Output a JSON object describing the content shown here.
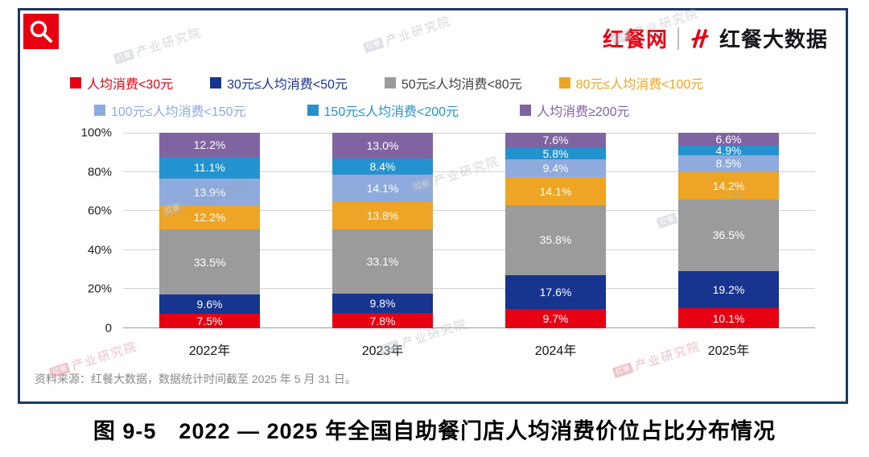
{
  "header": {
    "logo_icon": "magnifier-icon",
    "brand_left": "红餐网",
    "brand_right": "红餐大数据"
  },
  "legend": {
    "items": [
      {
        "label": "人均消费<30元",
        "color": "#e60012"
      },
      {
        "label": "30元≤人均消费<50元",
        "color": "#17348f"
      },
      {
        "label": "50元≤人均消费<80元",
        "color": "#9b9b9b",
        "text_color": "#404040"
      },
      {
        "label": "80元≤人均消费<100元",
        "color": "#eea425"
      },
      {
        "label": "100元≤人均消费<150元",
        "color": "#8faadc"
      },
      {
        "label": "150元≤人均消费<200元",
        "color": "#2492cf"
      },
      {
        "label": "人均消费≥200元",
        "color": "#8064a2"
      }
    ]
  },
  "chart_data": {
    "type": "bar",
    "stacked": true,
    "categories": [
      "2022年",
      "2023年",
      "2024年",
      "2025年"
    ],
    "series": [
      {
        "name": "人均消费<30元",
        "color": "#e60012",
        "values": [
          7.5,
          7.8,
          9.7,
          10.1
        ]
      },
      {
        "name": "30元≤人均消费<50元",
        "color": "#17348f",
        "values": [
          9.6,
          9.8,
          17.6,
          19.2
        ]
      },
      {
        "name": "50元≤人均消费<80元",
        "color": "#9b9b9b",
        "values": [
          33.5,
          33.1,
          35.8,
          36.5
        ]
      },
      {
        "name": "80元≤人均消费<100元",
        "color": "#eea425",
        "values": [
          12.2,
          13.8,
          14.1,
          14.2
        ]
      },
      {
        "name": "100元≤人均消费<150元",
        "color": "#8faadc",
        "values": [
          13.9,
          14.1,
          9.4,
          8.5
        ]
      },
      {
        "name": "150元≤人均消费<200元",
        "color": "#2492cf",
        "values": [
          11.1,
          8.4,
          5.8,
          4.9
        ]
      },
      {
        "name": "人均消费≥200元",
        "color": "#8064a2",
        "values": [
          12.2,
          13.0,
          7.6,
          6.6
        ]
      }
    ],
    "y_ticks": [
      {
        "value": 0,
        "label": "0"
      },
      {
        "value": 20,
        "label": "20%"
      },
      {
        "value": 40,
        "label": "40%"
      },
      {
        "value": 60,
        "label": "60%"
      },
      {
        "value": 80,
        "label": "80%"
      },
      {
        "value": 100,
        "label": "100%"
      }
    ],
    "ylim": [
      0,
      100
    ],
    "grid": true,
    "legend_position": "top",
    "title": "2022 — 2025 年全国自助餐门店人均消费价位占比分布情况"
  },
  "source_note": "资料来源：红餐大数据，数据统计时间截至 2025 年 5 月 31 日。",
  "caption": "图 9-5　2022 — 2025 年全国自助餐门店人均消费价位占比分布情况",
  "watermark": {
    "badge": "红餐",
    "text": "产业研究院"
  }
}
